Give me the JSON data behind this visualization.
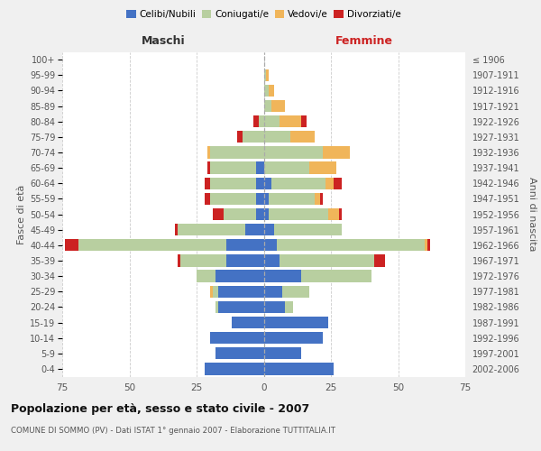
{
  "age_groups": [
    "0-4",
    "5-9",
    "10-14",
    "15-19",
    "20-24",
    "25-29",
    "30-34",
    "35-39",
    "40-44",
    "45-49",
    "50-54",
    "55-59",
    "60-64",
    "65-69",
    "70-74",
    "75-79",
    "80-84",
    "85-89",
    "90-94",
    "95-99",
    "100+"
  ],
  "birth_years": [
    "2002-2006",
    "1997-2001",
    "1992-1996",
    "1987-1991",
    "1982-1986",
    "1977-1981",
    "1972-1976",
    "1967-1971",
    "1962-1966",
    "1957-1961",
    "1952-1956",
    "1947-1951",
    "1942-1946",
    "1937-1941",
    "1932-1936",
    "1927-1931",
    "1922-1926",
    "1917-1921",
    "1912-1916",
    "1907-1911",
    "≤ 1906"
  ],
  "maschi": {
    "celibi": [
      22,
      18,
      20,
      12,
      17,
      17,
      18,
      14,
      14,
      7,
      3,
      3,
      3,
      3,
      0,
      0,
      0,
      0,
      0,
      0,
      0
    ],
    "coniugati": [
      0,
      0,
      0,
      0,
      1,
      2,
      7,
      17,
      55,
      25,
      12,
      17,
      17,
      17,
      20,
      8,
      2,
      0,
      0,
      0,
      0
    ],
    "vedovi": [
      0,
      0,
      0,
      0,
      0,
      1,
      0,
      0,
      0,
      0,
      0,
      0,
      0,
      0,
      1,
      0,
      0,
      0,
      0,
      0,
      0
    ],
    "divorziati": [
      0,
      0,
      0,
      0,
      0,
      0,
      0,
      1,
      5,
      1,
      4,
      2,
      2,
      1,
      0,
      2,
      2,
      0,
      0,
      0,
      0
    ]
  },
  "femmine": {
    "nubili": [
      26,
      14,
      22,
      24,
      8,
      7,
      14,
      6,
      5,
      4,
      2,
      2,
      3,
      0,
      0,
      0,
      0,
      0,
      0,
      0,
      0
    ],
    "coniugate": [
      0,
      0,
      0,
      0,
      3,
      10,
      26,
      35,
      55,
      25,
      22,
      17,
      20,
      17,
      22,
      10,
      6,
      3,
      2,
      1,
      0
    ],
    "vedove": [
      0,
      0,
      0,
      0,
      0,
      0,
      0,
      0,
      1,
      0,
      4,
      2,
      3,
      10,
      10,
      9,
      8,
      5,
      2,
      1,
      0
    ],
    "divorziate": [
      0,
      0,
      0,
      0,
      0,
      0,
      0,
      4,
      1,
      0,
      1,
      1,
      3,
      0,
      0,
      0,
      2,
      0,
      0,
      0,
      0
    ]
  },
  "colors": {
    "celibi_nubili": "#4472c4",
    "coniugati": "#b8cfa0",
    "vedovi": "#f0b55a",
    "divorziati": "#cc2222"
  },
  "xlim": 75,
  "title": "Popolazione per età, sesso e stato civile - 2007",
  "subtitle": "COMUNE DI SOMMO (PV) - Dati ISTAT 1° gennaio 2007 - Elaborazione TUTTITALIA.IT",
  "ylabel_left": "Fasce di età",
  "ylabel_right": "Anni di nascita",
  "xlabel_left": "Maschi",
  "xlabel_right": "Femmine",
  "bg_color": "#f0f0f0",
  "plot_bg": "#ffffff",
  "xticks": [
    -75,
    -50,
    -25,
    0,
    25,
    50,
    75
  ]
}
